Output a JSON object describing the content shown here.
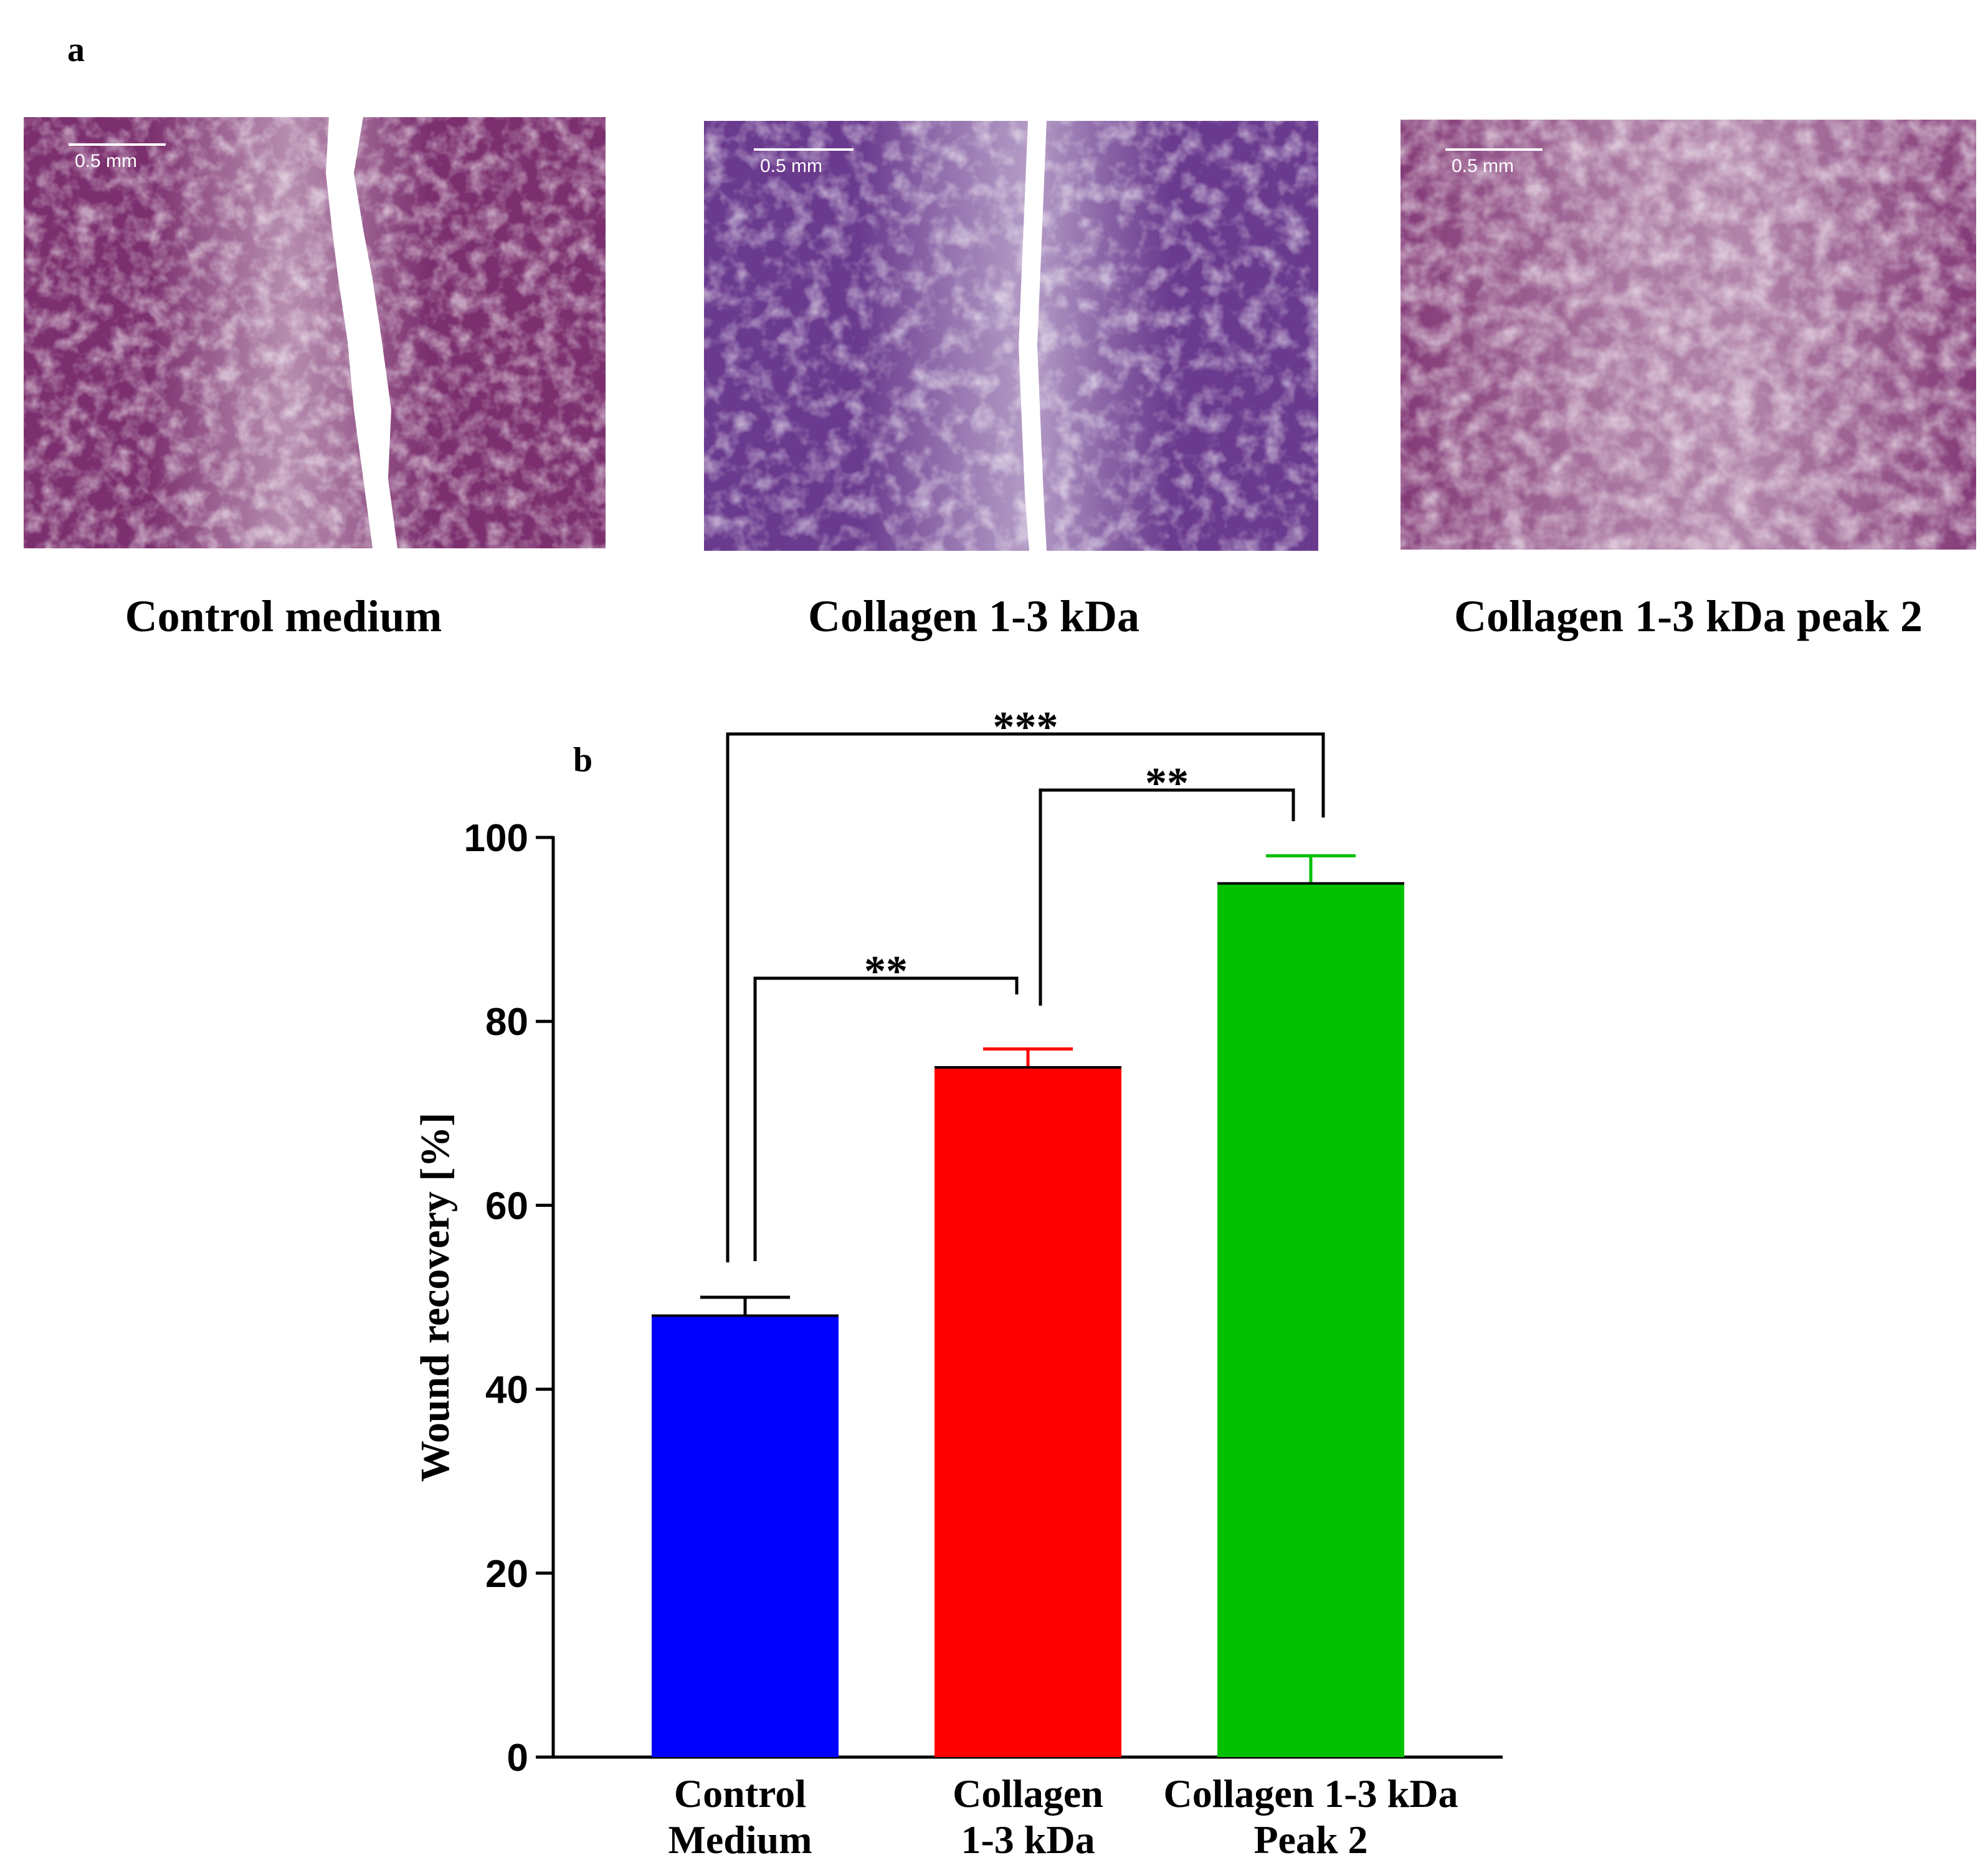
{
  "panel_a": {
    "letter": "a",
    "scale_bar_label": "0.5 mm",
    "images": [
      {
        "caption": "Control medium",
        "tint": "#7b2f6e"
      },
      {
        "caption": "Collagen 1-3 kDa",
        "tint": "#6a3a8e"
      },
      {
        "caption": "Collagen 1-3 kDa peak 2",
        "tint": "#7d3070"
      }
    ]
  },
  "panel_b": {
    "letter": "b"
  },
  "chart_data": {
    "type": "bar",
    "categories": [
      [
        "Control",
        "Medium"
      ],
      [
        "Collagen",
        "1-3 kDa"
      ],
      [
        "Collagen 1-3 kDa",
        "Peak 2"
      ]
    ],
    "values": [
      48,
      75,
      95
    ],
    "errors": [
      2,
      2,
      3
    ],
    "colors": [
      "#0000ff",
      "#ff0000",
      "#00c000"
    ],
    "ylabel": "Wound recovery [%]",
    "xlabel": "",
    "title": "",
    "ylim": [
      0,
      100
    ],
    "yticks": [
      0,
      20,
      40,
      60,
      80,
      100
    ],
    "significance": [
      {
        "from": 0,
        "to": 1,
        "label": "**"
      },
      {
        "from": 1,
        "to": 2,
        "label": "**"
      },
      {
        "from": 0,
        "to": 2,
        "label": "***"
      }
    ],
    "grid": false,
    "legend": "none"
  }
}
